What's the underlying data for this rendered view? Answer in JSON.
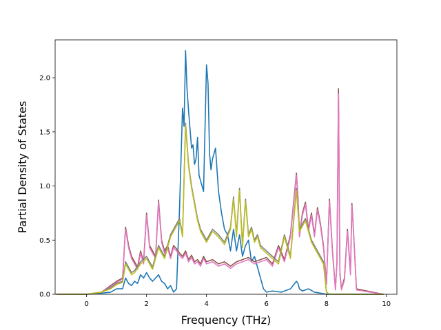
{
  "chart_data": {
    "type": "line",
    "title": "",
    "xlabel": "Frequency (THz)",
    "ylabel": "Partial Density of States",
    "xlim": [
      -1.05,
      10.35
    ],
    "ylim": [
      0,
      2.35
    ],
    "xticks": [
      0,
      2,
      4,
      6,
      8,
      10
    ],
    "xtick_labels": [
      "0",
      "2",
      "4",
      "6",
      "8",
      "10"
    ],
    "yticks": [
      0.0,
      0.5,
      1.0,
      1.5,
      2.0
    ],
    "ytick_labels": [
      "0.0",
      "0.5",
      "1.0",
      "1.5",
      "2.0"
    ],
    "grid": false,
    "legend": "none",
    "series": [
      {
        "color": "#1f77b4",
        "x": [
          -1,
          0,
          0.5,
          0.8,
          1.0,
          1.1,
          1.2,
          1.3,
          1.4,
          1.5,
          1.6,
          1.7,
          1.8,
          1.9,
          2.0,
          2.1,
          2.2,
          2.3,
          2.4,
          2.5,
          2.6,
          2.7,
          2.8,
          2.9,
          3.0,
          3.1,
          3.2,
          3.25,
          3.3,
          3.35,
          3.4,
          3.5,
          3.55,
          3.6,
          3.65,
          3.7,
          3.75,
          3.8,
          3.9,
          4.0,
          4.05,
          4.1,
          4.15,
          4.2,
          4.3,
          4.4,
          4.5,
          4.6,
          4.7,
          4.8,
          4.9,
          5.0,
          5.1,
          5.2,
          5.3,
          5.4,
          5.5,
          5.6,
          5.7,
          5.8,
          5.9,
          6.0,
          6.2,
          6.5,
          6.8,
          7.0,
          7.05,
          7.1,
          7.2,
          7.4,
          7.6,
          7.8,
          8.0,
          8.5,
          9.9
        ],
        "y": [
          0,
          0,
          0.01,
          0.02,
          0.05,
          0.05,
          0.05,
          0.15,
          0.1,
          0.08,
          0.12,
          0.1,
          0.18,
          0.15,
          0.2,
          0.15,
          0.12,
          0.15,
          0.18,
          0.12,
          0.1,
          0.05,
          0.08,
          0.02,
          0.05,
          0.8,
          1.72,
          1.55,
          2.25,
          1.9,
          1.7,
          1.35,
          1.38,
          1.2,
          1.25,
          1.45,
          1.1,
          1.05,
          0.95,
          2.12,
          1.95,
          1.3,
          1.15,
          1.25,
          1.35,
          0.95,
          0.75,
          0.6,
          0.55,
          0.4,
          0.6,
          0.4,
          0.55,
          0.35,
          0.45,
          0.5,
          0.3,
          0.35,
          0.25,
          0.15,
          0.05,
          0.02,
          0.03,
          0.02,
          0.05,
          0.12,
          0.1,
          0.05,
          0.03,
          0.05,
          0.02,
          0.01,
          0,
          0,
          0
        ]
      },
      {
        "color": "#8c564b",
        "x": [
          -1,
          0,
          0.5,
          0.8,
          1.0,
          1.2,
          1.3,
          1.4,
          1.5,
          1.6,
          1.7,
          1.8,
          1.9,
          2.0,
          2.1,
          2.2,
          2.3,
          2.4,
          2.5,
          2.6,
          2.7,
          2.8,
          2.9,
          3.0,
          3.1,
          3.2,
          3.3,
          3.4,
          3.5,
          3.6,
          3.7,
          3.8,
          3.9,
          4.0,
          4.2,
          4.4,
          4.6,
          4.8,
          5.0,
          5.2,
          5.4,
          5.6,
          5.8,
          6.0,
          6.2,
          6.4,
          6.6,
          6.8,
          7.0,
          7.05,
          7.1,
          7.2,
          7.3,
          7.4,
          7.5,
          7.6,
          7.7,
          7.8,
          7.9,
          8.0,
          8.1,
          8.2,
          8.3,
          8.35,
          8.4,
          8.45,
          8.5,
          8.6,
          8.7,
          8.8,
          8.85,
          8.9,
          9.0,
          9.9
        ],
        "y": [
          0,
          0,
          0.02,
          0.08,
          0.12,
          0.15,
          0.62,
          0.45,
          0.35,
          0.3,
          0.25,
          0.4,
          0.3,
          0.75,
          0.45,
          0.4,
          0.35,
          0.87,
          0.5,
          0.4,
          0.45,
          0.35,
          0.45,
          0.42,
          0.38,
          0.35,
          0.4,
          0.32,
          0.36,
          0.3,
          0.32,
          0.28,
          0.35,
          0.3,
          0.32,
          0.28,
          0.3,
          0.26,
          0.3,
          0.32,
          0.34,
          0.3,
          0.32,
          0.34,
          0.28,
          0.45,
          0.32,
          0.55,
          1.12,
          0.9,
          0.55,
          0.75,
          0.85,
          0.6,
          0.75,
          0.55,
          0.8,
          0.65,
          0.45,
          0.1,
          0.88,
          0.4,
          0.05,
          0.3,
          1.9,
          0.2,
          0.05,
          0.15,
          0.6,
          0.2,
          0.84,
          0.6,
          0.05,
          0
        ]
      },
      {
        "color": "#e377c2",
        "x": [
          -1,
          0,
          0.5,
          0.8,
          1.0,
          1.2,
          1.3,
          1.4,
          1.5,
          1.6,
          1.7,
          1.8,
          1.9,
          2.0,
          2.1,
          2.2,
          2.3,
          2.4,
          2.5,
          2.6,
          2.7,
          2.8,
          2.9,
          3.0,
          3.1,
          3.2,
          3.3,
          3.4,
          3.5,
          3.6,
          3.7,
          3.8,
          3.9,
          4.0,
          4.2,
          4.4,
          4.6,
          4.8,
          5.0,
          5.2,
          5.4,
          5.6,
          5.8,
          6.0,
          6.2,
          6.4,
          6.6,
          6.8,
          7.0,
          7.05,
          7.1,
          7.2,
          7.3,
          7.4,
          7.5,
          7.6,
          7.7,
          7.8,
          7.9,
          8.0,
          8.1,
          8.2,
          8.3,
          8.35,
          8.4,
          8.45,
          8.5,
          8.6,
          8.7,
          8.8,
          8.85,
          8.9,
          9.0,
          9.9
        ],
        "y": [
          0,
          0,
          0.02,
          0.07,
          0.11,
          0.14,
          0.6,
          0.43,
          0.33,
          0.28,
          0.23,
          0.38,
          0.28,
          0.73,
          0.43,
          0.38,
          0.33,
          0.85,
          0.48,
          0.38,
          0.43,
          0.33,
          0.43,
          0.4,
          0.36,
          0.33,
          0.38,
          0.3,
          0.34,
          0.28,
          0.3,
          0.26,
          0.33,
          0.28,
          0.3,
          0.26,
          0.28,
          0.24,
          0.28,
          0.3,
          0.32,
          0.28,
          0.3,
          0.32,
          0.26,
          0.43,
          0.3,
          0.53,
          1.1,
          0.88,
          0.53,
          0.73,
          0.83,
          0.58,
          0.73,
          0.53,
          0.78,
          0.63,
          0.43,
          0.09,
          0.86,
          0.38,
          0.04,
          0.28,
          1.85,
          0.18,
          0.04,
          0.13,
          0.58,
          0.18,
          0.82,
          0.58,
          0.04,
          0
        ]
      },
      {
        "color": "#7f7f7f",
        "x": [
          -1,
          0,
          0.5,
          0.8,
          1.0,
          1.2,
          1.3,
          1.4,
          1.5,
          1.6,
          1.8,
          2.0,
          2.2,
          2.4,
          2.6,
          2.8,
          3.0,
          3.1,
          3.2,
          3.3,
          3.4,
          3.5,
          3.6,
          3.7,
          3.8,
          3.9,
          4.0,
          4.2,
          4.4,
          4.6,
          4.8,
          4.9,
          5.0,
          5.1,
          5.2,
          5.3,
          5.4,
          5.5,
          5.6,
          5.7,
          5.8,
          6.0,
          6.2,
          6.4,
          6.6,
          6.8,
          7.0,
          7.1,
          7.3,
          7.5,
          7.7,
          7.9,
          8.0,
          8.1,
          9.9
        ],
        "y": [
          0,
          0,
          0.02,
          0.06,
          0.1,
          0.12,
          0.3,
          0.25,
          0.2,
          0.22,
          0.3,
          0.35,
          0.25,
          0.45,
          0.35,
          0.55,
          0.65,
          0.7,
          0.55,
          1.58,
          1.2,
          1.0,
          0.85,
          0.7,
          0.6,
          0.55,
          0.5,
          0.6,
          0.55,
          0.48,
          0.62,
          0.9,
          0.55,
          0.98,
          0.45,
          0.88,
          0.55,
          0.62,
          0.5,
          0.55,
          0.45,
          0.4,
          0.35,
          0.3,
          0.55,
          0.35,
          0.98,
          0.6,
          0.7,
          0.5,
          0.4,
          0.3,
          0.02,
          0,
          0
        ]
      },
      {
        "color": "#bcbd22",
        "x": [
          -1,
          0,
          0.5,
          0.8,
          1.0,
          1.2,
          1.3,
          1.4,
          1.5,
          1.6,
          1.8,
          2.0,
          2.2,
          2.4,
          2.6,
          2.8,
          3.0,
          3.1,
          3.2,
          3.3,
          3.4,
          3.5,
          3.6,
          3.7,
          3.8,
          3.9,
          4.0,
          4.2,
          4.4,
          4.6,
          4.8,
          4.9,
          5.0,
          5.1,
          5.2,
          5.3,
          5.4,
          5.5,
          5.6,
          5.7,
          5.8,
          6.0,
          6.2,
          6.4,
          6.6,
          6.8,
          7.0,
          7.1,
          7.3,
          7.5,
          7.7,
          7.9,
          8.0,
          8.1,
          9.9
        ],
        "y": [
          0,
          0,
          0.02,
          0.05,
          0.09,
          0.11,
          0.28,
          0.23,
          0.18,
          0.2,
          0.28,
          0.33,
          0.23,
          0.43,
          0.33,
          0.53,
          0.63,
          0.68,
          0.53,
          1.56,
          1.18,
          0.98,
          0.83,
          0.68,
          0.58,
          0.53,
          0.48,
          0.58,
          0.53,
          0.46,
          0.6,
          0.88,
          0.53,
          0.96,
          0.43,
          0.86,
          0.53,
          0.6,
          0.48,
          0.53,
          0.43,
          0.38,
          0.33,
          0.28,
          0.53,
          0.33,
          0.96,
          0.58,
          0.68,
          0.48,
          0.38,
          0.28,
          0.02,
          0,
          0
        ]
      }
    ]
  }
}
